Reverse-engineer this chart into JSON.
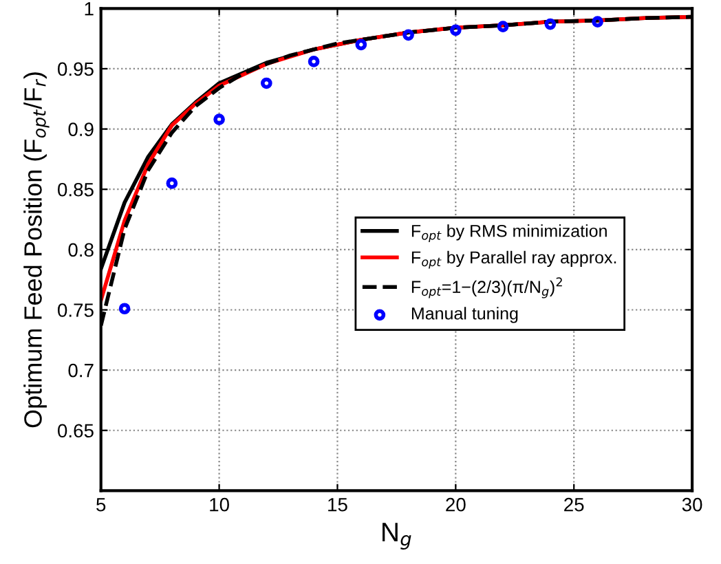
{
  "chart_data": {
    "type": "line",
    "xlabel": "N$_{g}$",
    "ylabel": "Optimum Feed Position (F$_{opt}$/F$_{r}$)",
    "xlim": [
      5,
      30
    ],
    "ylim": [
      0.6,
      1
    ],
    "xticks": [
      5,
      10,
      15,
      20,
      25,
      30
    ],
    "yticks": [
      0.65,
      0.7,
      0.75,
      0.8,
      0.85,
      0.9,
      0.95,
      1
    ],
    "grid": true,
    "legend": "right",
    "series": [
      {
        "name": "F$_{opt}$ by RMS minimization",
        "color": "#000000",
        "line_style": "solid",
        "x": [
          5,
          6,
          7,
          8,
          9,
          10,
          12,
          14,
          16,
          18,
          20,
          22,
          24,
          26,
          28,
          30
        ],
        "values": [
          0.784,
          0.839,
          0.877,
          0.904,
          0.922,
          0.938,
          0.955,
          0.966,
          0.974,
          0.98,
          0.984,
          0.986,
          0.989,
          0.99,
          0.992,
          0.993
        ]
      },
      {
        "name": "F$_{opt}$ by Parallel ray approx.",
        "color": "#ff0000",
        "line_style": "solid",
        "x": [
          5,
          6,
          7,
          8,
          9,
          10,
          12,
          14,
          16,
          18,
          20,
          22,
          24,
          26,
          28,
          30
        ],
        "values": [
          0.758,
          0.824,
          0.871,
          0.903,
          0.921,
          0.936,
          0.954,
          0.966,
          0.974,
          0.98,
          0.984,
          0.986,
          0.989,
          0.99,
          0.992,
          0.993
        ]
      },
      {
        "name": "F$_{opt}$=1−(2/3)(π/N$_{g}$)$^{2}$",
        "color": "#000000",
        "line_style": "dashed",
        "x": [
          5,
          6,
          7,
          8,
          9,
          10,
          11,
          12,
          13,
          14,
          15,
          16,
          18,
          20,
          22,
          24,
          26,
          28,
          30
        ],
        "values": [
          0.737,
          0.817,
          0.866,
          0.897,
          0.919,
          0.934,
          0.946,
          0.954,
          0.961,
          0.966,
          0.971,
          0.974,
          0.98,
          0.984,
          0.986,
          0.989,
          0.99,
          0.992,
          0.993
        ]
      },
      {
        "name": "Manual tuning",
        "type": "scatter",
        "marker": "circle",
        "color": "#0000ff",
        "x": [
          6,
          8,
          10,
          12,
          14,
          16,
          18,
          20,
          22,
          24,
          26
        ],
        "values": [
          0.751,
          0.855,
          0.908,
          0.938,
          0.956,
          0.97,
          0.978,
          0.982,
          0.985,
          0.987,
          0.989
        ]
      }
    ]
  }
}
